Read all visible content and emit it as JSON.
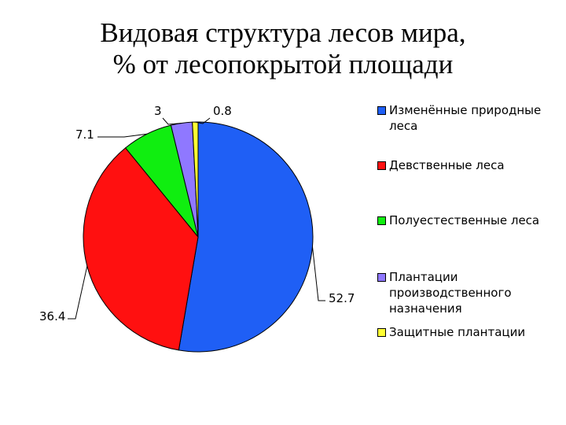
{
  "chart_data": {
    "type": "pie",
    "title_lines": [
      "Видовая структура лесов мира,",
      "% от лесопокрытой площади"
    ],
    "categories": [
      "Изменённые природные леса",
      "Девственные леса",
      "Полуестественные леса",
      "Плантации производственного назначения",
      "Защитные плантации"
    ],
    "values": [
      52.7,
      36.4,
      7.1,
      3,
      0.8
    ],
    "value_labels": [
      "52.7",
      "36.4",
      "7.1",
      "3",
      "0.8"
    ],
    "colors": [
      "#1f5ff5",
      "#ff1010",
      "#10ee10",
      "#8f78ff",
      "#ffff33"
    ],
    "start_angle_deg": 0,
    "direction": "clockwise",
    "legend_position": "right"
  }
}
